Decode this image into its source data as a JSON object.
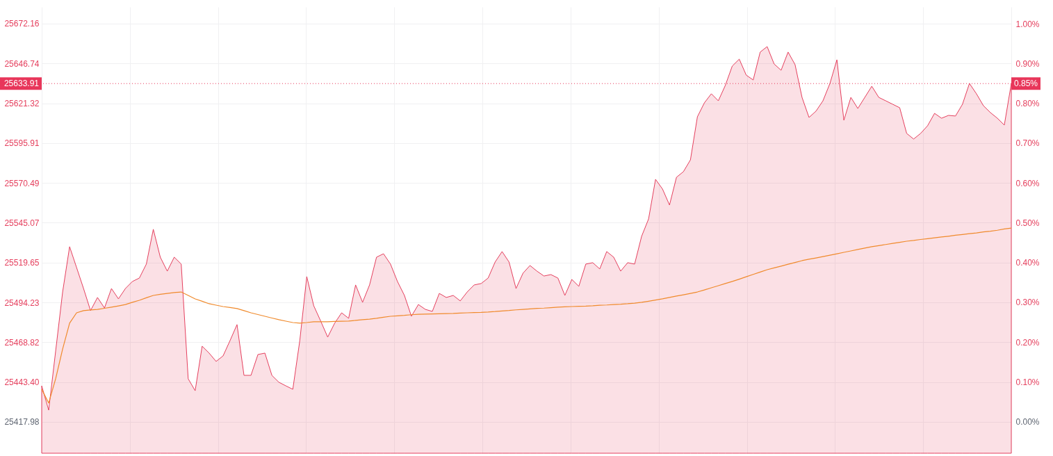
{
  "chart_data": {
    "type": "area",
    "categories": [
      null,
      null,
      null,
      null,
      null,
      null,
      null,
      null,
      null,
      null,
      null,
      null,
      null,
      null,
      null,
      null,
      null,
      null,
      null,
      null,
      null,
      null,
      null,
      null,
      null,
      null,
      null,
      null,
      null,
      null,
      null,
      null,
      null,
      null,
      null,
      null,
      null,
      null,
      null,
      null,
      null,
      null,
      null,
      null,
      null,
      null,
      null,
      null,
      null,
      null,
      null,
      null,
      null,
      null,
      null,
      null,
      null,
      null,
      null,
      null,
      null,
      null,
      null,
      null,
      null,
      null,
      null,
      null,
      null,
      null,
      null,
      null,
      null,
      null,
      null,
      null,
      null,
      null,
      null,
      null,
      null,
      null,
      null,
      null,
      null,
      null,
      null,
      null,
      null,
      null,
      null,
      null,
      null,
      null,
      null,
      null,
      null,
      null,
      null,
      null,
      null,
      null,
      null,
      null,
      null,
      null,
      null,
      null,
      null,
      null,
      null,
      null,
      null,
      null,
      null,
      null,
      null,
      null,
      null,
      null,
      null,
      null,
      null,
      null,
      null,
      null,
      null,
      null,
      null,
      null,
      null,
      null,
      null,
      null,
      null,
      null,
      null,
      null,
      null,
      null
    ],
    "series": [
      {
        "type": "area",
        "color": "#e5405e",
        "values": [
          25441.0,
          25425.5,
          25463.2,
          25500.9,
          25529.8,
          25516.5,
          25503.1,
          25489.0,
          25497.4,
          25490.7,
          25503.1,
          25496.5,
          25503.1,
          25507.6,
          25509.8,
          25518.7,
          25540.9,
          25523.1,
          25514.2,
          25523.1,
          25518.7,
          25445.5,
          25437.9,
          25466.3,
          25461.9,
          25456.6,
          25460.1,
          25469.9,
          25480.1,
          25447.7,
          25447.7,
          25461.0,
          25461.9,
          25447.7,
          25443.3,
          25441.0,
          25438.8,
          25469.9,
          25510.7,
          25492.1,
          25482.3,
          25472.1,
          25481.0,
          25487.6,
          25484.1,
          25505.4,
          25494.3,
          25505.4,
          25523.1,
          25525.3,
          25518.7,
          25507.6,
          25498.7,
          25485.4,
          25492.9,
          25489.8,
          25488.5,
          25500.0,
          25497.4,
          25498.7,
          25495.2,
          25500.9,
          25505.4,
          25506.3,
          25509.8,
          25520.0,
          25526.7,
          25520.0,
          25503.1,
          25512.9,
          25517.8,
          25514.2,
          25511.1,
          25512.0,
          25509.8,
          25498.7,
          25508.9,
          25504.5,
          25518.7,
          25519.6,
          25515.6,
          25526.7,
          25523.1,
          25514.2,
          25519.6,
          25518.7,
          25536.4,
          25547.5,
          25572.8,
          25566.6,
          25556.4,
          25574.1,
          25577.7,
          25585.2,
          25612.7,
          25621.6,
          25627.4,
          25622.9,
          25632.7,
          25645.1,
          25649.5,
          25639.3,
          25636.2,
          25654.0,
          25657.5,
          25646.4,
          25642.4,
          25654.0,
          25646.0,
          25625.1,
          25612.3,
          25616.3,
          25622.9,
          25634.0,
          25649.1,
          25610.5,
          25625.1,
          25618.0,
          25625.1,
          25632.2,
          25625.1,
          25622.9,
          25620.7,
          25618.5,
          25602.1,
          25598.5,
          25602.1,
          25607.0,
          25614.9,
          25611.8,
          25613.6,
          25613.2,
          25620.7,
          25634.0,
          25627.4,
          25619.8,
          25615.4,
          25611.8,
          25607.4,
          25633.9
        ]
      },
      {
        "type": "line",
        "color": "#f08a2c",
        "values": [
          25438.8,
          25430.0,
          25445.5,
          25464.5,
          25481.0,
          25487.6,
          25489.0,
          25489.4,
          25489.8,
          25490.5,
          25491.2,
          25492.0,
          25492.9,
          25494.3,
          25495.6,
          25497.2,
          25498.7,
          25499.4,
          25500.0,
          25500.5,
          25500.9,
          25498.7,
          25496.5,
          25495.0,
          25493.4,
          25492.5,
          25491.6,
          25491.0,
          25490.3,
          25489.0,
          25487.6,
          25486.5,
          25485.4,
          25484.3,
          25483.2,
          25482.3,
          25481.4,
          25481.0,
          25481.4,
          25481.9,
          25481.9,
          25481.9,
          25482.1,
          25482.2,
          25482.3,
          25482.8,
          25483.2,
          25483.6,
          25484.1,
          25484.8,
          25485.4,
          25485.7,
          25486.0,
          25486.4,
          25486.7,
          25486.8,
          25486.9,
          25487.0,
          25487.1,
          25487.2,
          25487.4,
          25487.6,
          25487.8,
          25487.9,
          25488.1,
          25488.4,
          25488.8,
          25489.1,
          25489.5,
          25489.8,
          25490.1,
          25490.4,
          25490.6,
          25490.9,
          25491.2,
          25491.4,
          25491.6,
          25491.8,
          25491.9,
          25492.1,
          25492.4,
          25492.6,
          25492.9,
          25493.1,
          25493.4,
          25493.8,
          25494.3,
          25495.0,
          25495.8,
          25496.5,
          25497.4,
          25498.3,
          25499.1,
          25500.0,
          25500.9,
          25502.2,
          25503.6,
          25504.9,
          25506.3,
          25507.6,
          25509.1,
          25510.6,
          25512.1,
          25513.6,
          25515.1,
          25516.3,
          25517.4,
          25518.6,
          25519.7,
          25520.9,
          25521.8,
          25522.6,
          25523.5,
          25524.4,
          25525.3,
          25526.2,
          25527.1,
          25528.0,
          25528.9,
          25529.8,
          25530.5,
          25531.2,
          25531.9,
          25532.6,
          25533.3,
          25533.8,
          25534.4,
          25534.9,
          25535.5,
          25536.0,
          25536.5,
          25537.1,
          25537.6,
          25538.1,
          25538.6,
          25539.2,
          25539.7,
          25540.3,
          25541.1,
          25541.7
        ]
      }
    ],
    "ylim": [
      25398.0,
      25682.8
    ],
    "yticks": [
      25417.98,
      {
        "value": 25443.4,
        "label": "25443.40"
      },
      25468.82,
      25494.23,
      25519.65,
      25545.07,
      25570.49,
      25595.91,
      25621.32,
      25646.74,
      25672.16
    ],
    "y2lim": [
      -0.079,
      1.042
    ],
    "y2ticks": [
      {
        "value": 0,
        "label": "0.00%"
      },
      {
        "value": 0.1,
        "label": "0.10%"
      },
      {
        "value": 0.2,
        "label": "0.20%"
      },
      {
        "value": 0.3,
        "label": "0.30%"
      },
      {
        "value": 0.4,
        "label": "0.40%"
      },
      {
        "value": 0.5,
        "label": "0.50%"
      },
      {
        "value": 0.6,
        "label": "0.60%"
      },
      {
        "value": 0.7,
        "label": "0.70%"
      },
      {
        "value": 0.8,
        "label": "0.80%"
      },
      {
        "value": 0.9,
        "label": "0.90%"
      },
      {
        "value": 1,
        "label": "1.00%"
      }
    ],
    "ref_lines": [
      {
        "axis": "y",
        "value": 25633.91,
        "label": "25633.91",
        "color": "#e8365a",
        "line_style": "dotted"
      }
    ],
    "annotations": [
      {
        "text": "0.85%",
        "y": 25633.91
      }
    ],
    "grid": true,
    "tick_labels": "y"
  }
}
